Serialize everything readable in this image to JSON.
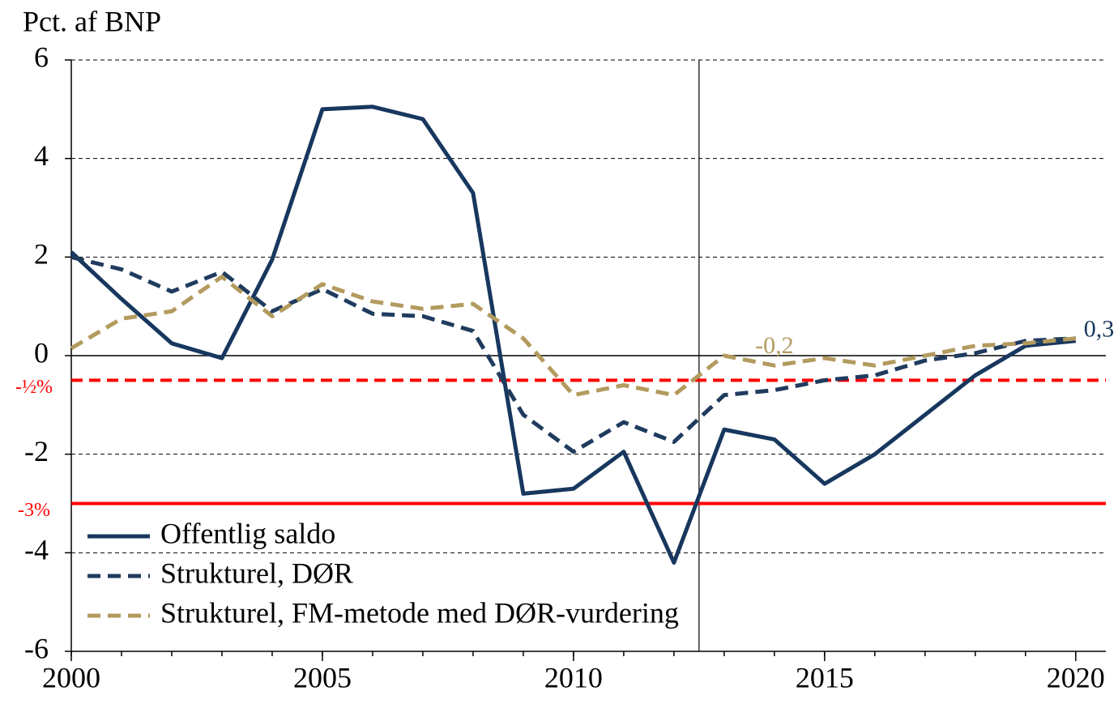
{
  "chart_data": {
    "type": "line",
    "y_label": "Pct. af BNP",
    "x": [
      2000,
      2001,
      2002,
      2003,
      2004,
      2005,
      2006,
      2007,
      2008,
      2009,
      2010,
      2011,
      2012,
      2013,
      2014,
      2015,
      2016,
      2017,
      2018,
      2019,
      2020
    ],
    "series": [
      {
        "name": "Offentlig saldo",
        "color": "#17375e",
        "style": "solid",
        "values": [
          2.1,
          1.15,
          0.25,
          -0.05,
          1.95,
          5.0,
          5.05,
          4.8,
          3.3,
          -2.8,
          -2.7,
          -1.95,
          -4.2,
          -1.5,
          -1.7,
          -2.6,
          -2.0,
          -1.2,
          -0.4,
          0.2,
          0.3
        ],
        "value_labels": [
          null,
          null,
          null,
          null,
          null,
          null,
          null,
          null,
          null,
          null,
          null,
          null,
          null,
          null,
          null,
          null,
          null,
          null,
          null,
          null,
          "0,3"
        ]
      },
      {
        "name": "Strukturel, DØR",
        "color": "#1f3b5e",
        "style": "dashed",
        "values": [
          2.0,
          1.75,
          1.3,
          1.7,
          0.9,
          1.35,
          0.85,
          0.8,
          0.5,
          -1.2,
          -1.95,
          -1.35,
          -1.75,
          -0.8,
          -0.7,
          -0.5,
          -0.4,
          -0.1,
          0.05,
          0.3,
          0.35
        ]
      },
      {
        "name": "Strukturel, FM-metode med DØR-vurdering",
        "color": "#b39a5e",
        "style": "dashed",
        "values": [
          0.15,
          0.75,
          0.9,
          1.6,
          0.8,
          1.45,
          1.1,
          0.95,
          1.05,
          0.35,
          -0.8,
          -0.6,
          -0.8,
          0.0,
          -0.2,
          -0.05,
          -0.2,
          0.0,
          0.2,
          0.25,
          0.35
        ],
        "value_labels": [
          null,
          null,
          null,
          null,
          null,
          null,
          null,
          null,
          null,
          null,
          null,
          null,
          null,
          null,
          "-0,2",
          null,
          null,
          null,
          null,
          null,
          null
        ]
      }
    ],
    "reference_lines": [
      {
        "value": -0.5,
        "label": "-½%",
        "color": "#ff0000",
        "style": "dashed"
      },
      {
        "value": -3,
        "label": "-3%",
        "color": "#ff0000",
        "style": "solid"
      }
    ],
    "vline": 2012.5,
    "xlim": [
      2000,
      2020.6
    ],
    "xticks": [
      2000,
      2005,
      2010,
      2015,
      2020
    ],
    "ylim": [
      -6,
      6
    ],
    "yticks": [
      -6,
      -4,
      -2,
      0,
      2,
      4,
      6
    ],
    "grid": true,
    "legend": "lower left"
  }
}
